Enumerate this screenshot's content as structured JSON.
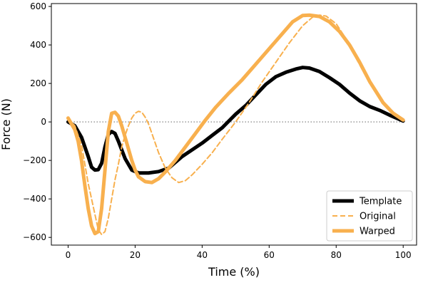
{
  "chart_data": {
    "type": "line",
    "xlabel": "Time  (%)",
    "ylabel": "Force  (N)",
    "xlim": [
      -5,
      104
    ],
    "ylim": [
      -640,
      615
    ],
    "xticks": [
      0,
      20,
      40,
      60,
      80,
      100
    ],
    "yticks": [
      -600,
      -400,
      -200,
      0,
      200,
      400,
      600
    ],
    "xtick_labels": [
      "0",
      "20",
      "40",
      "60",
      "80",
      "100"
    ],
    "ytick_labels": [
      "−600",
      "−400",
      "−200",
      "0",
      "200",
      "400",
      "600"
    ],
    "legend_position": "bottom-right",
    "reference_line": {
      "y": 0,
      "style": "dotted",
      "color": "#999999"
    },
    "series": [
      {
        "name": "Template",
        "color": "#000000",
        "style": "solid",
        "weight": "heavy",
        "points": [
          [
            0,
            0
          ],
          [
            2,
            -20
          ],
          [
            4,
            -80
          ],
          [
            6,
            -180
          ],
          [
            7,
            -235
          ],
          [
            8,
            -250
          ],
          [
            9,
            -248
          ],
          [
            10,
            -215
          ],
          [
            11,
            -130
          ],
          [
            12,
            -65
          ],
          [
            13,
            -50
          ],
          [
            14,
            -60
          ],
          [
            15,
            -100
          ],
          [
            17,
            -190
          ],
          [
            19,
            -250
          ],
          [
            21,
            -265
          ],
          [
            24,
            -265
          ],
          [
            27,
            -258
          ],
          [
            30,
            -240
          ],
          [
            32,
            -210
          ],
          [
            34,
            -180
          ],
          [
            37,
            -145
          ],
          [
            40,
            -110
          ],
          [
            43,
            -70
          ],
          [
            46,
            -30
          ],
          [
            48,
            5
          ],
          [
            50,
            40
          ],
          [
            53,
            85
          ],
          [
            56,
            140
          ],
          [
            59,
            195
          ],
          [
            62,
            235
          ],
          [
            65,
            258
          ],
          [
            68,
            275
          ],
          [
            70,
            283
          ],
          [
            72,
            280
          ],
          [
            75,
            262
          ],
          [
            78,
            230
          ],
          [
            81,
            195
          ],
          [
            84,
            150
          ],
          [
            87,
            110
          ],
          [
            90,
            80
          ],
          [
            93,
            60
          ],
          [
            96,
            35
          ],
          [
            100,
            5
          ]
        ]
      },
      {
        "name": "Original",
        "color": "#f8b04e",
        "style": "dashed",
        "weight": "thin",
        "points": [
          [
            0,
            20
          ],
          [
            2,
            -20
          ],
          [
            4,
            -120
          ],
          [
            6,
            -320
          ],
          [
            8,
            -480
          ],
          [
            9,
            -560
          ],
          [
            10,
            -585
          ],
          [
            11,
            -570
          ],
          [
            12,
            -500
          ],
          [
            13,
            -400
          ],
          [
            14,
            -300
          ],
          [
            15,
            -220
          ],
          [
            16,
            -130
          ],
          [
            17,
            -70
          ],
          [
            18,
            -20
          ],
          [
            19,
            20
          ],
          [
            20,
            45
          ],
          [
            21,
            55
          ],
          [
            22,
            50
          ],
          [
            23,
            25
          ],
          [
            24,
            -10
          ],
          [
            25,
            -60
          ],
          [
            27,
            -160
          ],
          [
            29,
            -240
          ],
          [
            31,
            -290
          ],
          [
            33,
            -315
          ],
          [
            35,
            -305
          ],
          [
            37,
            -275
          ],
          [
            40,
            -220
          ],
          [
            43,
            -160
          ],
          [
            46,
            -90
          ],
          [
            50,
            0
          ],
          [
            54,
            100
          ],
          [
            58,
            210
          ],
          [
            62,
            310
          ],
          [
            66,
            410
          ],
          [
            70,
            500
          ],
          [
            73,
            545
          ],
          [
            75,
            555
          ],
          [
            77,
            550
          ],
          [
            80,
            510
          ],
          [
            83,
            430
          ],
          [
            86,
            330
          ],
          [
            90,
            200
          ],
          [
            94,
            100
          ],
          [
            97,
            45
          ],
          [
            100,
            10
          ]
        ]
      },
      {
        "name": "Warped",
        "color": "#f8b04e",
        "style": "solid",
        "weight": "heavy",
        "points": [
          [
            0,
            20
          ],
          [
            1,
            -10
          ],
          [
            2,
            -40
          ],
          [
            3,
            -100
          ],
          [
            4,
            -200
          ],
          [
            5,
            -330
          ],
          [
            6,
            -450
          ],
          [
            7,
            -540
          ],
          [
            8,
            -580
          ],
          [
            9,
            -570
          ],
          [
            10,
            -450
          ],
          [
            11,
            -250
          ],
          [
            12,
            -50
          ],
          [
            13,
            45
          ],
          [
            14,
            50
          ],
          [
            15,
            30
          ],
          [
            16,
            -20
          ],
          [
            17,
            -80
          ],
          [
            18,
            -140
          ],
          [
            19,
            -200
          ],
          [
            20,
            -250
          ],
          [
            21,
            -285
          ],
          [
            23,
            -310
          ],
          [
            25,
            -315
          ],
          [
            27,
            -295
          ],
          [
            29,
            -260
          ],
          [
            32,
            -200
          ],
          [
            35,
            -130
          ],
          [
            38,
            -60
          ],
          [
            41,
            10
          ],
          [
            44,
            75
          ],
          [
            48,
            150
          ],
          [
            52,
            220
          ],
          [
            56,
            300
          ],
          [
            60,
            380
          ],
          [
            64,
            460
          ],
          [
            67,
            520
          ],
          [
            70,
            553
          ],
          [
            72,
            555
          ],
          [
            75,
            548
          ],
          [
            78,
            520
          ],
          [
            81,
            470
          ],
          [
            84,
            400
          ],
          [
            87,
            310
          ],
          [
            90,
            210
          ],
          [
            94,
            100
          ],
          [
            97,
            45
          ],
          [
            100,
            10
          ]
        ]
      }
    ]
  }
}
